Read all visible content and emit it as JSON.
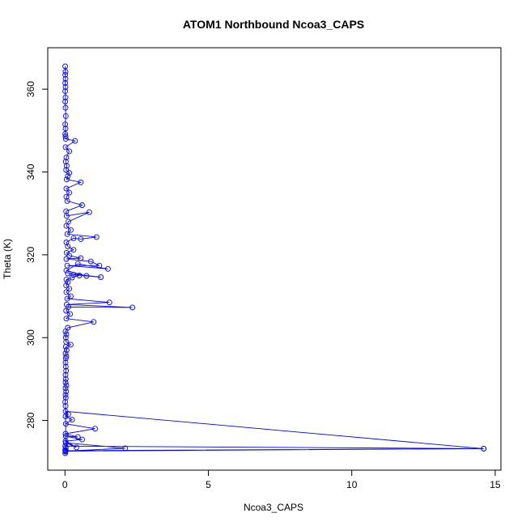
{
  "chart_data": {
    "type": "line",
    "title": "ATOM1 Northbound Ncoa3_CAPS",
    "xlabel": "Ncoa3_CAPS",
    "ylabel": "Theta (K)",
    "xlim": [
      -0.6,
      15.2
    ],
    "ylim": [
      268,
      370
    ],
    "xticks": [
      0,
      5,
      10,
      15
    ],
    "yticks": [
      280,
      300,
      320,
      340,
      360
    ],
    "grid": false,
    "series_color": "#0000ff",
    "series": [
      {
        "marker": "open-circle",
        "points": [
          [
            0.01,
            272.1
          ],
          [
            0.02,
            272.5
          ],
          [
            0.01,
            272.9
          ],
          [
            0.03,
            273.4
          ],
          [
            0.01,
            273.8
          ],
          [
            14.6,
            273.2
          ],
          [
            0.02,
            272.6
          ],
          [
            2.1,
            273.3
          ],
          [
            0.03,
            274.6
          ],
          [
            0.4,
            273.5
          ],
          [
            0.02,
            275.0
          ],
          [
            0.6,
            275.4
          ],
          [
            0.03,
            276.2
          ],
          [
            0.45,
            276.0
          ],
          [
            0.02,
            276.8
          ],
          [
            1.05,
            278.0
          ],
          [
            0.03,
            279.2
          ],
          [
            0.25,
            280.2
          ],
          [
            0.02,
            281.0
          ],
          [
            0.12,
            281.5
          ],
          [
            0.02,
            282.2
          ],
          [
            14.6,
            273.2
          ],
          [
            0.03,
            272.7
          ],
          [
            0.02,
            283.5
          ],
          [
            0.01,
            284.5
          ],
          [
            0.03,
            285.5
          ],
          [
            0.02,
            286.2
          ],
          [
            0.04,
            287.0
          ],
          [
            0.02,
            287.8
          ],
          [
            0.05,
            288.5
          ],
          [
            0.02,
            289.2
          ],
          [
            0.03,
            290.0
          ],
          [
            0.02,
            291.0
          ],
          [
            0.04,
            292.0
          ],
          [
            0.03,
            293.0
          ],
          [
            0.02,
            294.0
          ],
          [
            0.03,
            295.0
          ],
          [
            0.05,
            295.5
          ],
          [
            0.02,
            296.2
          ],
          [
            0.06,
            297.0
          ],
          [
            0.03,
            297.8
          ],
          [
            0.2,
            298.3
          ],
          [
            0.04,
            299.0
          ],
          [
            0.03,
            300.0
          ],
          [
            0.05,
            300.8
          ],
          [
            0.02,
            301.5
          ],
          [
            0.1,
            302.4
          ],
          [
            1.0,
            303.8
          ],
          [
            0.05,
            304.6
          ],
          [
            0.18,
            305.7
          ],
          [
            0.04,
            306.5
          ],
          [
            0.12,
            307.4
          ],
          [
            2.35,
            307.3
          ],
          [
            0.06,
            308.0
          ],
          [
            1.55,
            308.5
          ],
          [
            0.08,
            309.4
          ],
          [
            0.2,
            310.0
          ],
          [
            0.05,
            311.0
          ],
          [
            0.15,
            311.8
          ],
          [
            0.04,
            312.6
          ],
          [
            0.1,
            313.4
          ],
          [
            0.05,
            314.0
          ],
          [
            0.25,
            314.5
          ],
          [
            0.5,
            315.0
          ],
          [
            0.3,
            315.2
          ],
          [
            1.25,
            314.6
          ],
          [
            0.1,
            315.5
          ],
          [
            0.75,
            314.9
          ],
          [
            0.05,
            316.2
          ],
          [
            0.45,
            317.8
          ],
          [
            1.5,
            316.6
          ],
          [
            0.08,
            317.4
          ],
          [
            1.2,
            317.4
          ],
          [
            0.9,
            318.4
          ],
          [
            0.05,
            319.0
          ],
          [
            0.55,
            319.2
          ],
          [
            0.15,
            319.8
          ],
          [
            0.06,
            320.5
          ],
          [
            0.3,
            321.2
          ],
          [
            0.1,
            322.0
          ],
          [
            0.05,
            323.0
          ],
          [
            0.3,
            324.0
          ],
          [
            0.55,
            323.8
          ],
          [
            1.1,
            324.3
          ],
          [
            0.08,
            325.0
          ],
          [
            0.2,
            326.0
          ],
          [
            0.05,
            327.0
          ],
          [
            0.12,
            328.0
          ],
          [
            0.85,
            330.3
          ],
          [
            0.06,
            329.4
          ],
          [
            0.04,
            330.5
          ],
          [
            0.6,
            332.0
          ],
          [
            0.08,
            333.0
          ],
          [
            0.05,
            334.0
          ],
          [
            0.15,
            335.0
          ],
          [
            0.05,
            336.0
          ],
          [
            0.55,
            337.5
          ],
          [
            0.06,
            338.2
          ],
          [
            0.1,
            339.0
          ],
          [
            0.15,
            339.8
          ],
          [
            0.04,
            340.5
          ],
          [
            0.06,
            341.5
          ],
          [
            0.03,
            342.5
          ],
          [
            0.05,
            343.5
          ],
          [
            0.15,
            345.0
          ],
          [
            0.02,
            346.0
          ],
          [
            0.35,
            347.5
          ],
          [
            0.03,
            348.0
          ],
          [
            0.02,
            348.6
          ],
          [
            0.01,
            349.2
          ],
          [
            0.02,
            350.5
          ],
          [
            0.01,
            351.5
          ],
          [
            0.03,
            353.5
          ],
          [
            0.02,
            355.5
          ],
          [
            0.01,
            357.0
          ],
          [
            0.02,
            358.0
          ],
          [
            0.01,
            359.5
          ],
          [
            0.02,
            360.5
          ],
          [
            0.01,
            361.5
          ],
          [
            0.02,
            362.5
          ],
          [
            0.01,
            363.5
          ],
          [
            0.02,
            364.2
          ],
          [
            0.01,
            365.5
          ]
        ]
      }
    ]
  }
}
